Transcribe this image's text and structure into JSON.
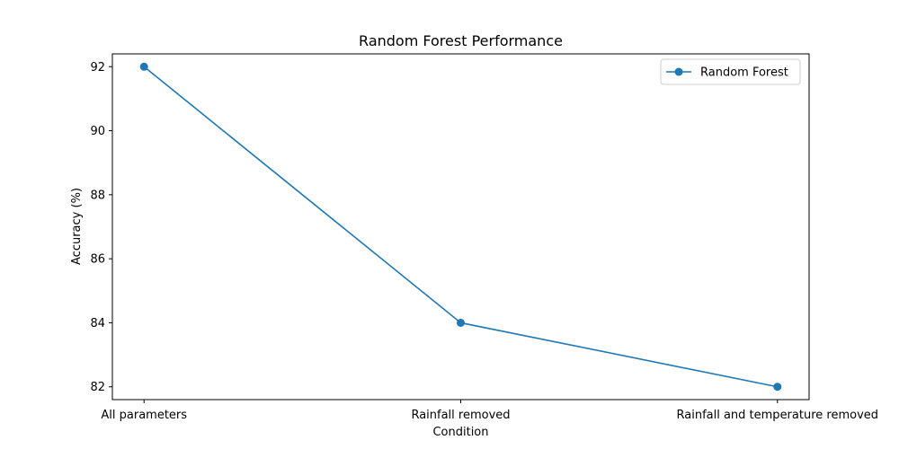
{
  "chart_data": {
    "type": "line",
    "title": "Random Forest Performance",
    "xlabel": "Condition",
    "ylabel": "Accuracy (%)",
    "categories": [
      "All parameters",
      "Rainfall removed",
      "Rainfall and temperature removed"
    ],
    "series": [
      {
        "name": "Random Forest",
        "values": [
          92,
          84,
          82
        ],
        "color": "#1f77b4",
        "marker": "circle"
      }
    ],
    "ylim": [
      81.6,
      92.4
    ],
    "yticks": [
      82,
      84,
      86,
      88,
      90,
      92
    ],
    "grid": false,
    "legend_position": "top-right"
  }
}
